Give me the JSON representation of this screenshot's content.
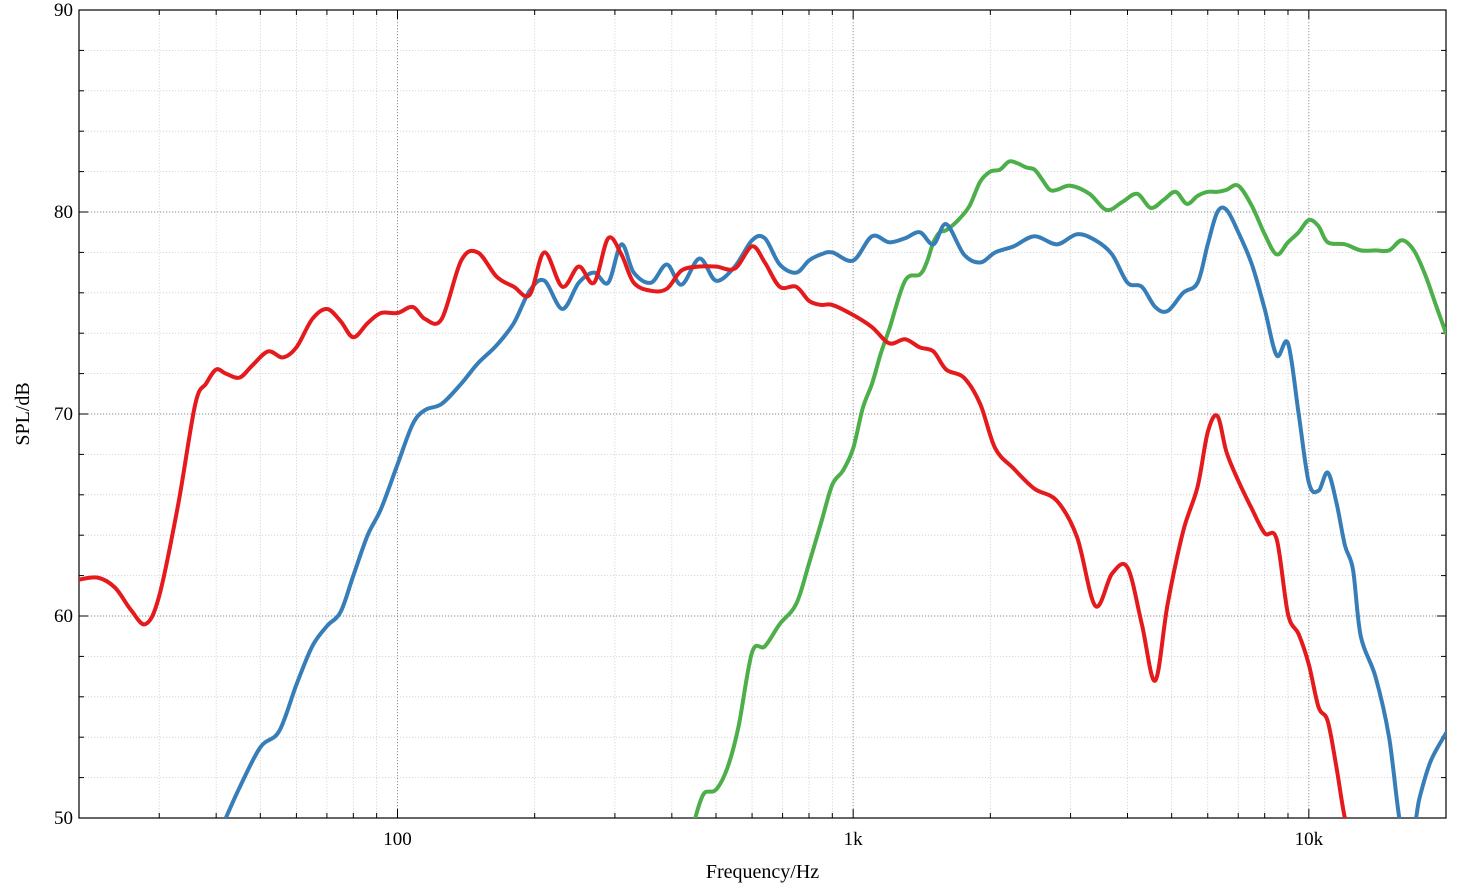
{
  "chart_data": {
    "type": "line",
    "xlabel": "Frequency/Hz",
    "ylabel": "SPL/dB",
    "xscale": "log",
    "xlim": [
      20,
      20000
    ],
    "ylim": [
      50,
      90
    ],
    "grid": true,
    "x_ticks": [
      {
        "value": 100,
        "label": "100"
      },
      {
        "value": 1000,
        "label": "1k"
      },
      {
        "value": 10000,
        "label": "10k"
      }
    ],
    "y_ticks": [
      {
        "value": 50,
        "label": "50"
      },
      {
        "value": 60,
        "label": "60"
      },
      {
        "value": 70,
        "label": "70"
      },
      {
        "value": 80,
        "label": "80"
      },
      {
        "value": 90,
        "label": "90"
      }
    ],
    "series": [
      {
        "color": "#e41a1c",
        "x": [
          20,
          22,
          24,
          26,
          28,
          30,
          33,
          36,
          38,
          40,
          42,
          45,
          48,
          52,
          56,
          60,
          65,
          70,
          75,
          80,
          86,
          92,
          100,
          108,
          115,
          125,
          138,
          150,
          165,
          180,
          195,
          210,
          230,
          250,
          270,
          290,
          310,
          330,
          360,
          390,
          420,
          460,
          500,
          550,
          600,
          640,
          690,
          750,
          800,
          850,
          900,
          1000,
          1100,
          1200,
          1300,
          1400,
          1500,
          1600,
          1750,
          1900,
          2050,
          2250,
          2500,
          2800,
          3100,
          3400,
          3700,
          4000,
          4300,
          4600,
          4900,
          5300,
          5700,
          6000,
          6300,
          6600,
          7000,
          7500,
          8000,
          8500,
          9000,
          9500,
          10000,
          10500,
          11000,
          11500,
          12000,
          12500
        ],
        "y": [
          61.8,
          61.9,
          61.4,
          60.3,
          59.6,
          61,
          65.5,
          70.5,
          71.5,
          72.2,
          72,
          71.8,
          72.4,
          73.1,
          72.8,
          73.3,
          74.7,
          75.2,
          74.6,
          73.8,
          74.5,
          75,
          75,
          75.3,
          74.7,
          74.7,
          77.6,
          78,
          76.8,
          76.3,
          75.9,
          78,
          76.3,
          77.3,
          76.5,
          78.7,
          77.9,
          76.5,
          76.1,
          76.2,
          77.1,
          77.3,
          77.3,
          77.2,
          78.3,
          77.5,
          76.3,
          76.3,
          75.6,
          75.4,
          75.4,
          74.9,
          74.3,
          73.5,
          73.7,
          73.3,
          73.1,
          72.2,
          71.8,
          70.5,
          68.3,
          67.3,
          66.3,
          65.7,
          63.9,
          60.5,
          62.1,
          62.4,
          59.6,
          56.8,
          60.6,
          64.2,
          66.4,
          69.1,
          69.9,
          68.1,
          66.7,
          65.3,
          64.1,
          63.8,
          60.1,
          59.1,
          57.6,
          55.5,
          54.8,
          52.5,
          50,
          49
        ]
      },
      {
        "color": "#377eb8",
        "x": [
          42,
          45,
          50,
          55,
          60,
          65,
          70,
          75,
          80,
          86,
          92,
          100,
          108,
          115,
          125,
          138,
          150,
          165,
          180,
          195,
          210,
          230,
          250,
          270,
          290,
          310,
          330,
          360,
          390,
          420,
          460,
          500,
          550,
          600,
          640,
          690,
          750,
          800,
          850,
          900,
          1000,
          1100,
          1200,
          1300,
          1400,
          1500,
          1600,
          1750,
          1900,
          2050,
          2250,
          2500,
          2800,
          3100,
          3400,
          3700,
          4000,
          4300,
          4600,
          4900,
          5300,
          5700,
          6000,
          6300,
          6600,
          7000,
          7500,
          8000,
          8500,
          9000,
          9500,
          10000,
          10500,
          11000,
          11500,
          12000,
          12500,
          13000,
          14000,
          15000,
          16000,
          17000,
          17500,
          18500,
          20000
        ],
        "y": [
          50,
          51.5,
          53.5,
          54.3,
          56.6,
          58.5,
          59.5,
          60.2,
          62,
          64,
          65.3,
          67.5,
          69.5,
          70.2,
          70.5,
          71.5,
          72.5,
          73.4,
          74.5,
          76.1,
          76.6,
          75.2,
          76.5,
          77,
          76.5,
          78.4,
          77,
          76.5,
          77.4,
          76.4,
          77.7,
          76.6,
          77.3,
          78.6,
          78.7,
          77.4,
          77,
          77.6,
          77.9,
          78,
          77.6,
          78.8,
          78.5,
          78.7,
          79,
          78.4,
          79.4,
          77.9,
          77.5,
          78,
          78.3,
          78.8,
          78.4,
          78.9,
          78.6,
          77.9,
          76.5,
          76.3,
          75.3,
          75.1,
          76,
          76.5,
          78.4,
          80,
          80.1,
          79,
          77.4,
          75.2,
          72.9,
          73.5,
          70,
          66.6,
          66.2,
          67.1,
          65.6,
          63.5,
          62.3,
          59,
          57,
          54,
          49.3,
          49.6,
          51,
          52.8,
          54.2
        ]
      },
      {
        "color": "#4daf4a",
        "x": [
          450,
          470,
          500,
          530,
          560,
          600,
          640,
          690,
          750,
          800,
          850,
          900,
          950,
          1000,
          1050,
          1100,
          1150,
          1200,
          1300,
          1400,
          1450,
          1500,
          1550,
          1600,
          1700,
          1800,
          1900,
          2000,
          2100,
          2200,
          2300,
          2400,
          2500,
          2600,
          2700,
          2800,
          3000,
          3300,
          3600,
          3900,
          4200,
          4500,
          4800,
          5100,
          5400,
          5700,
          6000,
          6300,
          6600,
          7000,
          7500,
          8000,
          8500,
          9000,
          9500,
          10000,
          10500,
          11000,
          12000,
          13000,
          14000,
          15000,
          16000,
          17000,
          18000,
          19000,
          20000
        ],
        "y": [
          50,
          51.2,
          51.4,
          52.5,
          54.5,
          58.2,
          58.5,
          59.6,
          60.6,
          62.6,
          64.6,
          66.5,
          67.2,
          68.3,
          70.3,
          71.5,
          73,
          74.2,
          76.6,
          76.9,
          77.5,
          78.5,
          79,
          79.1,
          79.6,
          80.3,
          81.5,
          82,
          82.1,
          82.5,
          82.4,
          82.2,
          82.1,
          81.6,
          81.1,
          81.1,
          81.3,
          80.9,
          80.1,
          80.5,
          80.9,
          80.2,
          80.6,
          81,
          80.4,
          80.8,
          81,
          81,
          81.1,
          81.3,
          80.3,
          78.9,
          77.9,
          78.5,
          79,
          79.6,
          79.3,
          78.5,
          78.4,
          78.1,
          78.1,
          78.1,
          78.6,
          78.1,
          76.9,
          75.4,
          74
        ]
      }
    ]
  }
}
